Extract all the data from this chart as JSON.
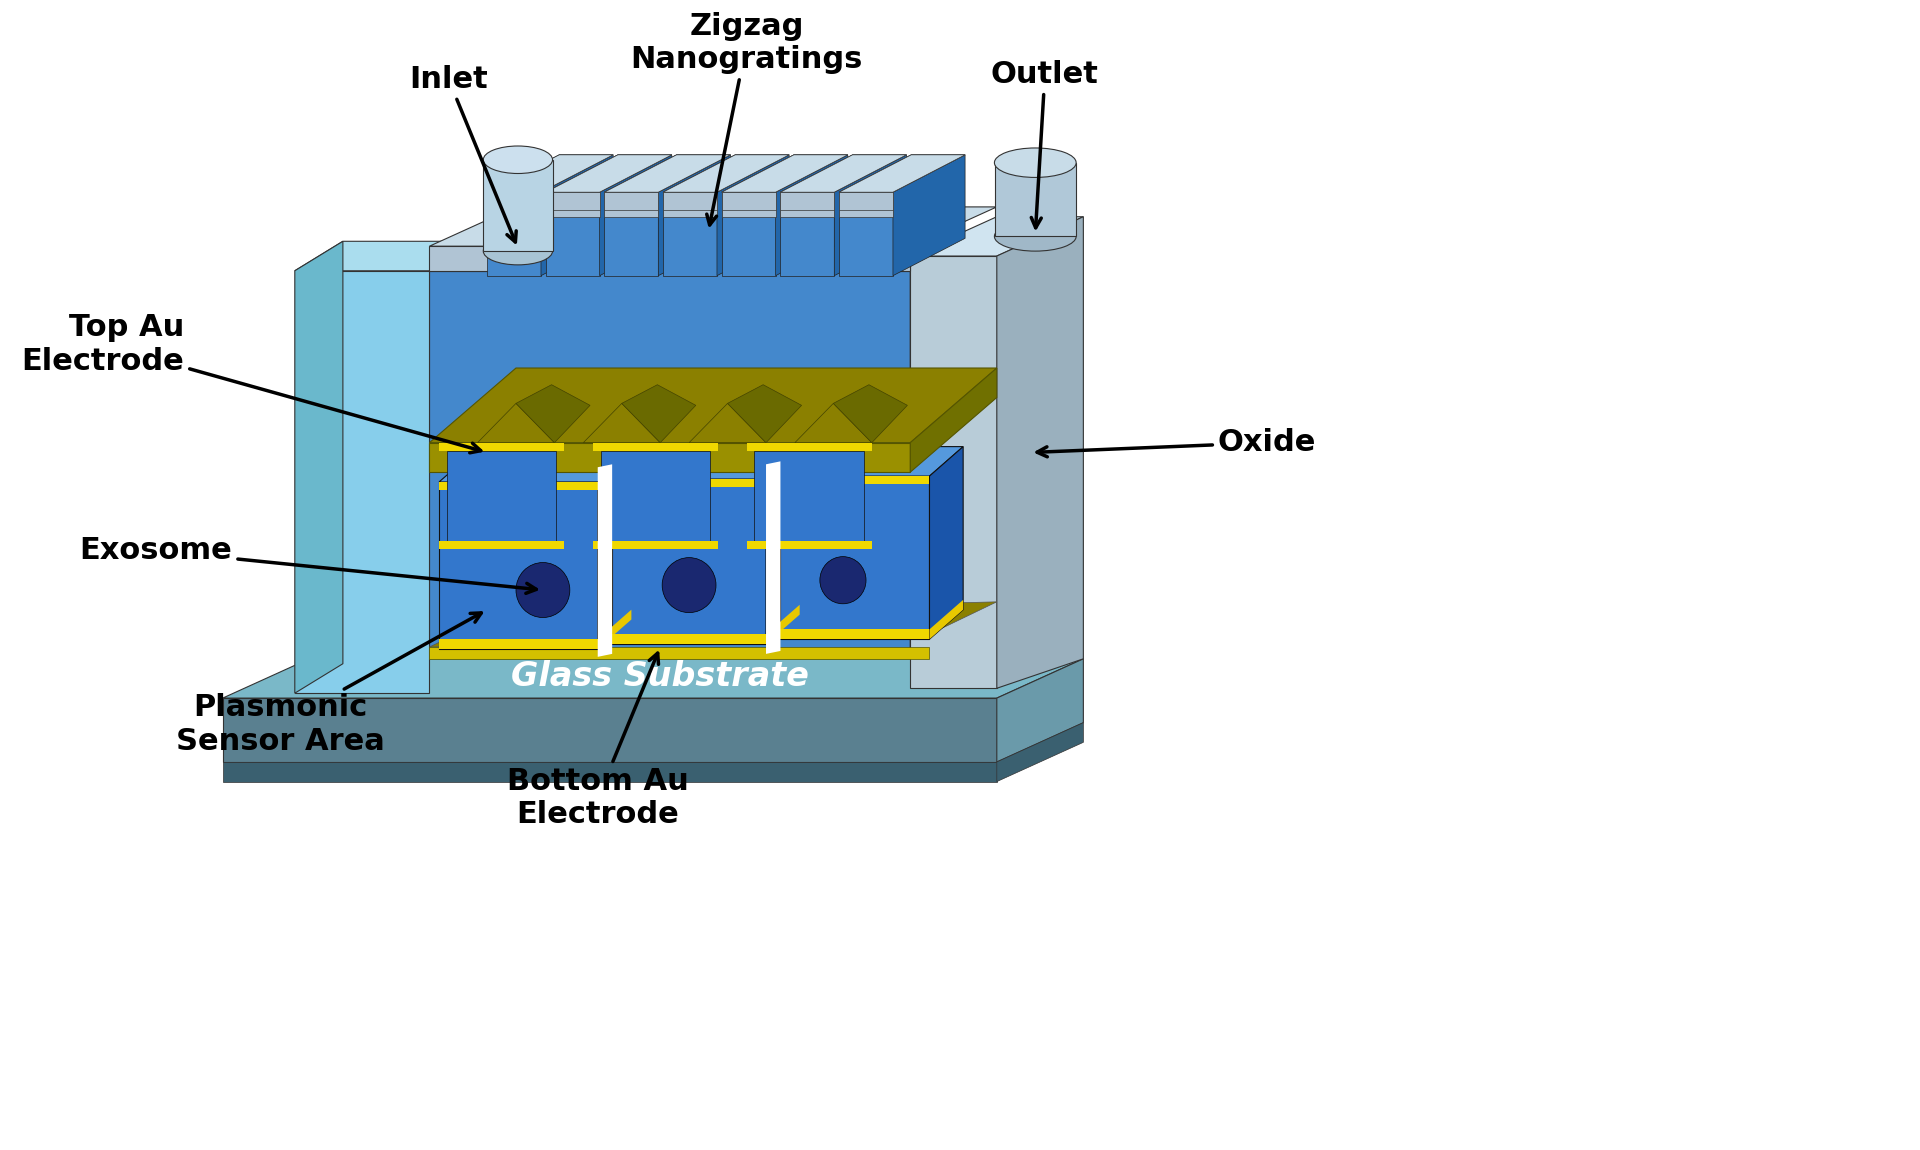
{
  "bg_color": "#ffffff",
  "colors": {
    "light_blue_wall": "#87CEEB",
    "light_blue_wall2": "#aaddee",
    "light_blue_side": "#6ab8cc",
    "blue_pillar_front": "#4488CC",
    "blue_pillar_top": "#66aadd",
    "blue_pillar_side": "#2266aa",
    "blue_cell_front": "#3377CC",
    "blue_cell_top": "#5599dd",
    "blue_cell_side": "#1a55aa",
    "gray_lid_front": "#b0c4d4",
    "gray_lid_top": "#c8dce8",
    "gray_lid_side": "#90aabb",
    "gold_dark": "#8B8000",
    "gold_olive": "#9a9000",
    "gold_bright": "#d4c000",
    "yellow_bright": "#f0d800",
    "glass_top": "#7ab8c8",
    "glass_front": "#5a8090",
    "glass_side": "#6a9aaa",
    "oxide_front": "#b8ccd8",
    "oxide_top": "#d0e4f0",
    "oxide_side": "#9ab0be",
    "inlet_cyl": "#b8d4e4",
    "outlet_cyl": "#b0c8d8",
    "navy_exosome": "#1a2870",
    "white": "#ffffff",
    "black": "#000000"
  },
  "labels": {
    "inlet": "Inlet",
    "zigzag": "Zigzag\nNanogratings",
    "outlet": "Outlet",
    "top_au": "Top Au\nElectrode",
    "glass": "Glass Substrate",
    "exosome": "Exosome",
    "plasmonic": "Plasmonic\nSensor Area",
    "bottom_au": "Bottom Au\nElectrode",
    "oxide": "Oxide"
  }
}
